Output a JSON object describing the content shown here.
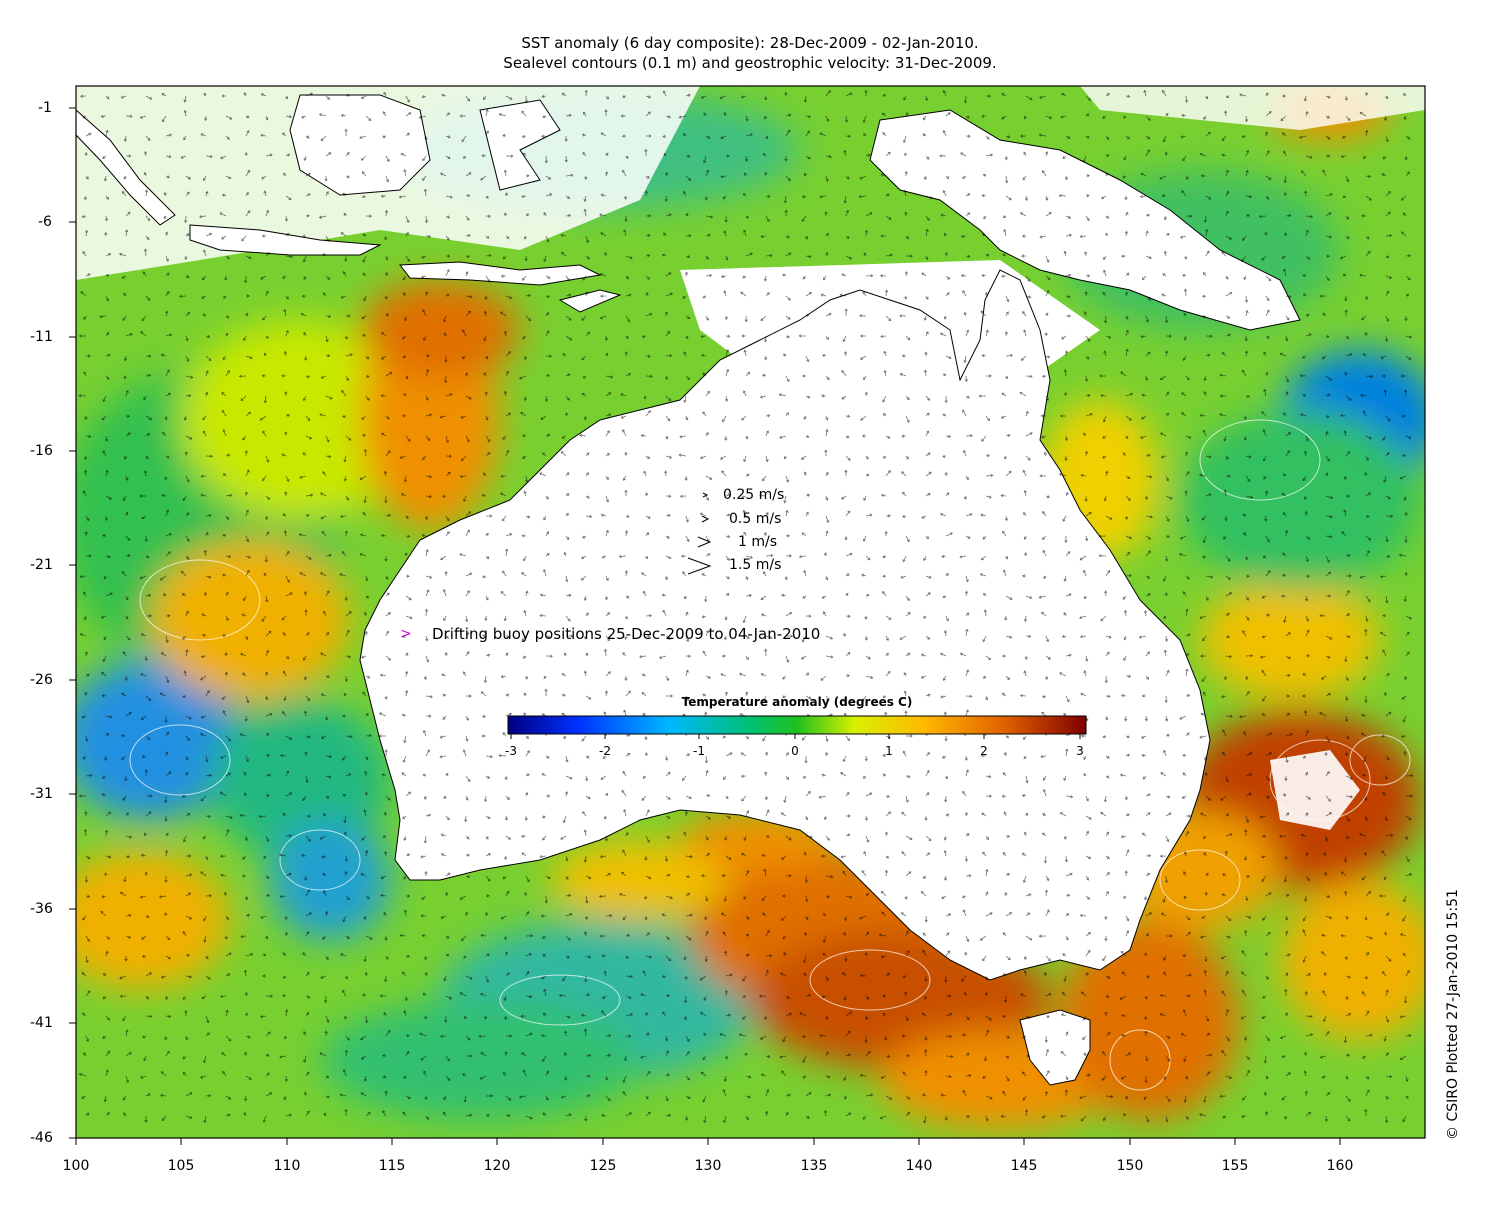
{
  "title_line1": "SST anomaly (6 day composite): 28-Dec-2009 - 02-Jan-2010.",
  "title_line2": "Sealevel contours (0.1 m) and geostrophic velocity: 31-Dec-2009.",
  "y_axis_ticks": [
    "-1",
    "-6",
    "-11",
    "-16",
    "-21",
    "-26",
    "-31",
    "-36",
    "-41",
    "-46"
  ],
  "x_axis_ticks": [
    "100",
    "105",
    "110",
    "115",
    "120",
    "125",
    "130",
    "135",
    "140",
    "145",
    "150",
    "155",
    "160"
  ],
  "velocity_legend": [
    "0.25 m/s",
    "0.5 m/s",
    "1 m/s",
    "1.5 m/s"
  ],
  "buoy_marker": ">",
  "buoy_legend": "Drifting buoy positions 25-Dec-2009 to 04-Jan-2010",
  "colorbar": {
    "title": "Temperature anomaly (degrees C)",
    "ticks": [
      "-3",
      "-2",
      "-1",
      "0",
      "1",
      "2",
      "3"
    ],
    "range": [
      -3,
      3
    ],
    "colors": [
      "#00007f",
      "#0040ff",
      "#00c0ff",
      "#00c060",
      "#40d020",
      "#e0f000",
      "#ffc000",
      "#ff8000",
      "#c04000",
      "#800000"
    ]
  },
  "credit": "© CSIRO Plotted 27-Jan-2010 15:51",
  "map": {
    "lon_range": [
      100,
      164
    ],
    "lat_range": [
      -46,
      -0.5
    ],
    "land_color": "#ffffff",
    "contour_color": "#ffffff"
  }
}
